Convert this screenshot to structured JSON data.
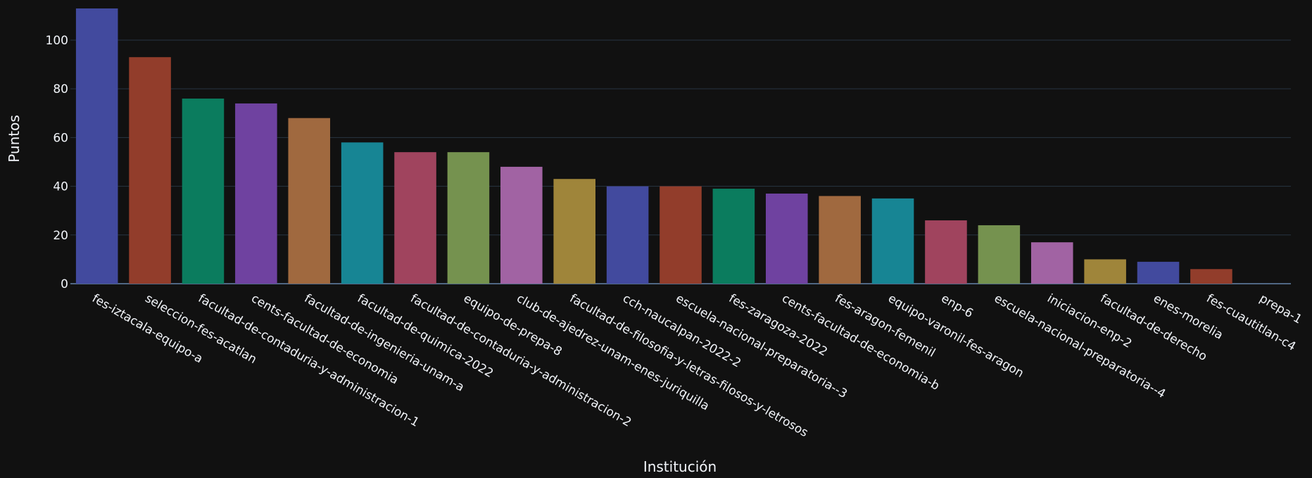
{
  "chart_data": {
    "type": "bar",
    "xlabel": "Institución",
    "ylabel": "Puntos",
    "ylim": [
      0,
      113
    ],
    "yticks": [
      0,
      20,
      40,
      60,
      80,
      100
    ],
    "grid": true,
    "categories": [
      "fes-iztacala-equipo-a",
      "seleccion-fes-acatlan",
      "facultad-de-contaduria-y-administracion-1",
      "cents-facultad-de-economia",
      "facultad-de-ingenieria-unam-a",
      "facultad-de-quimica-2022",
      "facultad-de-contaduria-y-administracion-2",
      "equipo-de-prepa-8",
      "club-de-ajedrez-unam-enes-juriquilla",
      "facultad-de-filosofia-y-letras-filosos-y-letrosos",
      "cch-naucalpan-2022-2",
      "escuela-nacional-preparatoria--3",
      "fes-zaragoza-2022",
      "cents-facultad-de-economia-b",
      "fes-aragon-femenil",
      "equipo-varonil-fes-aragon",
      "enp-6",
      "escuela-nacional-preparatoria--4",
      "iniciacion-enp-2",
      "facultad-de-derecho",
      "enes-morelia",
      "fes-cuautitlan-c4",
      "prepa-1"
    ],
    "values": [
      113,
      93,
      76,
      74,
      68,
      58,
      54,
      54,
      48,
      43,
      40,
      40,
      39,
      37,
      36,
      35,
      26,
      24,
      17,
      10,
      9,
      6,
      0
    ],
    "colors": [
      "#424a9e",
      "#923d2b",
      "#0b7c5e",
      "#6f42a0",
      "#a0693f",
      "#178594",
      "#a0445e",
      "#75924f",
      "#a163a3",
      "#9f853a"
    ]
  }
}
